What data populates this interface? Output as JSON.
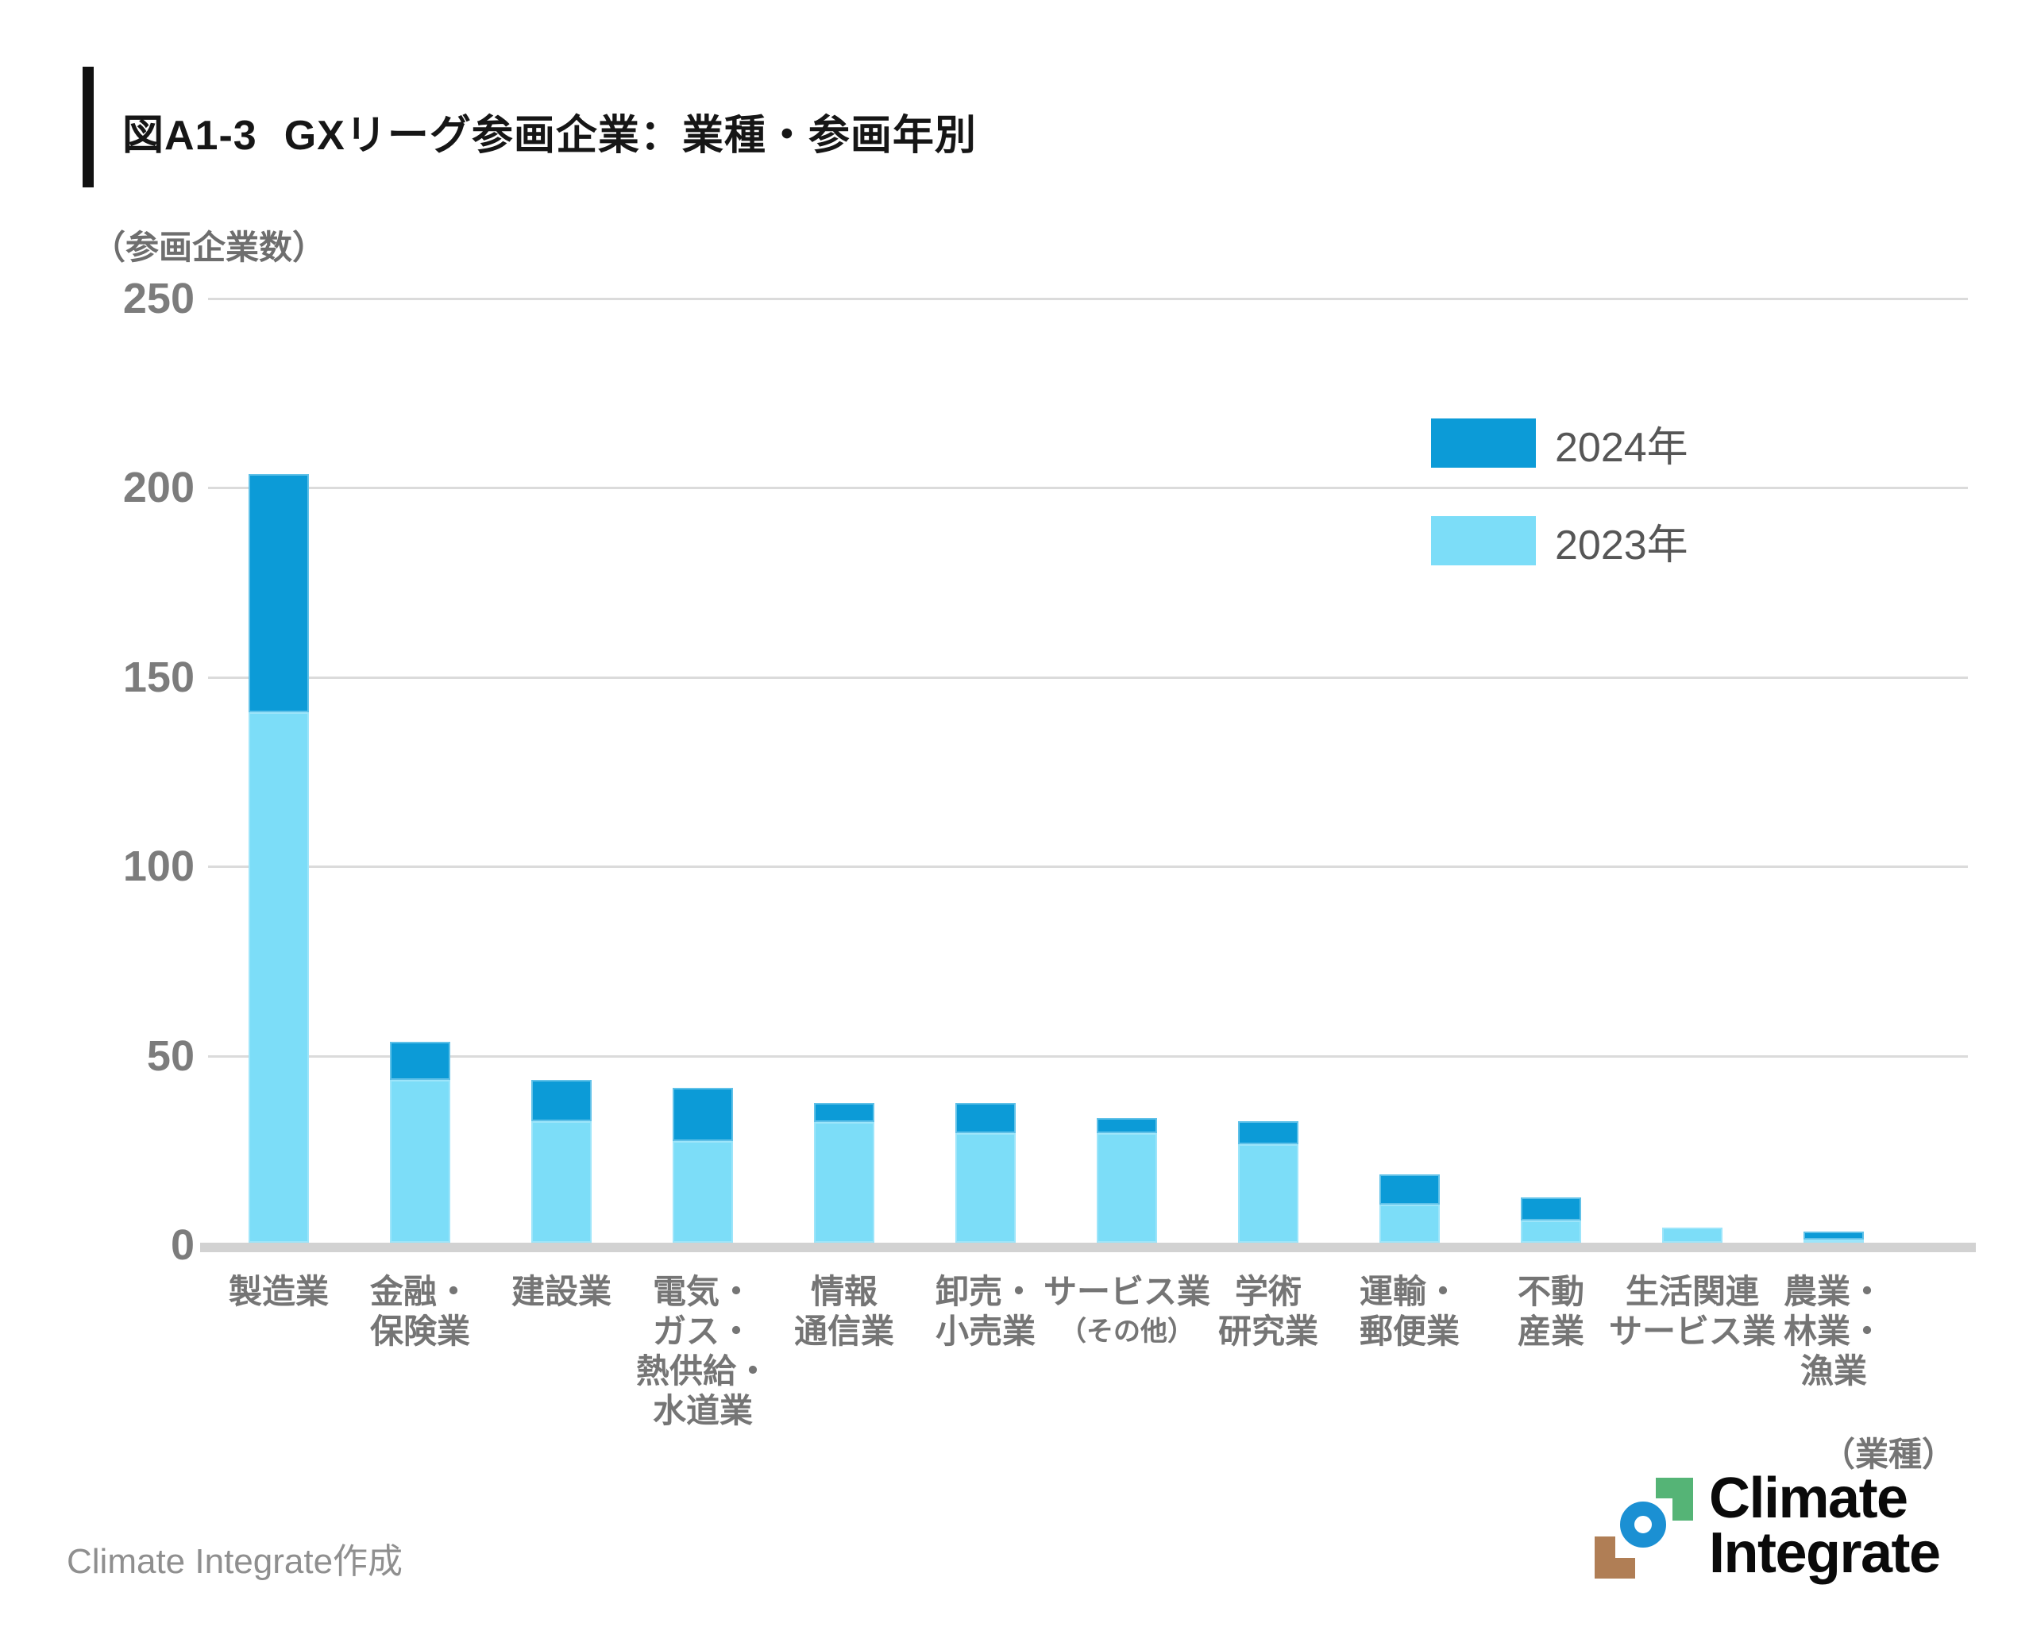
{
  "figure": {
    "label": "図A1-3",
    "title": "GXリーグ参画企業：業種・参画年別"
  },
  "y_axis": {
    "unit_label": "（参画企業数）",
    "tick_values": [
      250,
      200,
      150,
      100,
      50,
      0
    ]
  },
  "x_axis": {
    "unit_label": "（業種）"
  },
  "legend": {
    "items": [
      {
        "label": "2024年",
        "color": "#0c9bd7"
      },
      {
        "label": "2023年",
        "color": "#7cddf8"
      }
    ]
  },
  "footer": {
    "credit": "Climate Integrate作成"
  },
  "logo": {
    "line1": "Climate",
    "line2": "Integrate"
  },
  "chart_data": {
    "type": "bar",
    "stacked": true,
    "title": "GXリーグ参画企業：業種・参画年別",
    "xlabel": "（業種）",
    "ylabel": "（参画企業数）",
    "ylim": [
      0,
      250
    ],
    "grid": true,
    "legend_position": "upper right",
    "categories": [
      "製造業",
      "金融・保険業",
      "建設業",
      "電気・ガス・熱供給・水道業",
      "情報通信業",
      "卸売・小売業",
      "サービス業（その他）",
      "学術研究業",
      "運輸・郵便業",
      "不動産業",
      "生活関連サービス業",
      "農業・林業・漁業"
    ],
    "category_lines": [
      [
        "製造業"
      ],
      [
        "金融・",
        "保険業"
      ],
      [
        "建設業"
      ],
      [
        "電気・",
        "ガス・",
        "熱供給・",
        "水道業"
      ],
      [
        "情報",
        "通信業"
      ],
      [
        "卸売・",
        "小売業"
      ],
      [
        "サービス業",
        "（その他）"
      ],
      [
        "学術",
        "研究業"
      ],
      [
        "運輸・",
        "郵便業"
      ],
      [
        "不動",
        "産業"
      ],
      [
        "生活関連",
        "サービス業"
      ],
      [
        "農業・",
        "林業・",
        "漁業"
      ]
    ],
    "series": [
      {
        "name": "2023年",
        "color": "#7cddf8",
        "values": [
          140,
          43,
          32,
          27,
          32,
          29,
          29,
          26,
          10,
          6,
          4,
          1
        ]
      },
      {
        "name": "2024年",
        "color": "#0c9bd7",
        "values": [
          63,
          10,
          11,
          14,
          5,
          8,
          4,
          6,
          8,
          6,
          0,
          2
        ]
      }
    ]
  }
}
